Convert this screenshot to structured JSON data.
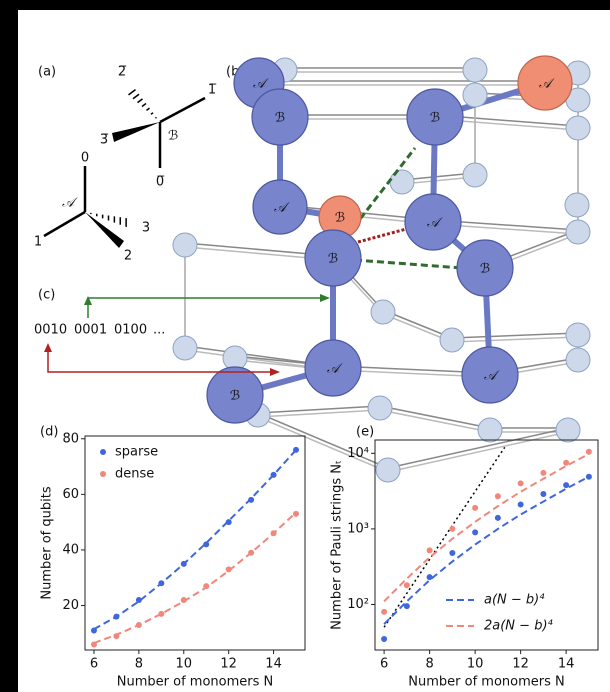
{
  "panel_labels": [
    "(a)",
    "(b)",
    "(c)",
    "(d)",
    "(e)"
  ],
  "fragment_b": {
    "center": "ℬ",
    "legs": [
      "0̅",
      "1̅",
      "2̅",
      "3̅"
    ]
  },
  "fragment_a": {
    "center": "𝒜",
    "legs": [
      "0",
      "1",
      "2",
      "3"
    ]
  },
  "nodes": [
    {
      "label": "𝒜"
    },
    {
      "label": "𝒜"
    },
    {
      "label": "ℬ"
    },
    {
      "label": "ℬ"
    },
    {
      "label": "𝒜"
    },
    {
      "label": "ℬ"
    },
    {
      "label": "𝒜"
    },
    {
      "label": "ℬ"
    },
    {
      "label": "ℬ"
    },
    {
      "label": "𝒜"
    },
    {
      "label": "𝒜"
    },
    {
      "label": "ℬ"
    }
  ],
  "bitstring": [
    "0010",
    "0001",
    "0100",
    "..."
  ],
  "chart_data": [
    {
      "type": "scatter",
      "xlabel": "Number of monomers N",
      "ylabel": "Number of qubits",
      "x": [
        6,
        7,
        8,
        9,
        10,
        11,
        12,
        13,
        14,
        15
      ],
      "series": [
        {
          "name": "sparse",
          "color": "#3f66dc",
          "values": [
            11,
            16,
            22,
            28,
            35,
            42,
            50,
            58,
            67,
            76
          ],
          "fit": [
            11.5,
            16,
            21.5,
            28,
            35,
            42.5,
            50.5,
            58.5,
            67,
            76
          ]
        },
        {
          "name": "dense",
          "color": "#f0877a",
          "values": [
            6,
            9,
            13,
            17,
            22,
            27,
            33,
            39,
            46,
            53
          ],
          "fit": [
            6.5,
            9.5,
            13,
            17,
            21.5,
            26.5,
            32.5,
            39,
            46,
            53.5
          ]
        }
      ],
      "xlim": [
        5.6,
        15.4
      ],
      "xticks": [
        6,
        8,
        10,
        12,
        14
      ],
      "ylim": [
        4,
        81
      ],
      "yticks": [
        20,
        40,
        60,
        80
      ],
      "legend": "upper left"
    },
    {
      "type": "scatter",
      "xlabel": "Number of monomers N",
      "ylabel": "Number of Pauli strings Nₜ",
      "x": [
        6,
        7,
        8,
        9,
        10,
        11,
        12,
        13,
        14,
        15
      ],
      "series": [
        {
          "name": "a(N − b)⁴",
          "color": "#3f66dc",
          "values": [
            35,
            95,
            230,
            480,
            900,
            1400,
            2100,
            2900,
            3800,
            4900
          ],
          "fit": [
            55,
            110,
            210,
            370,
            620,
            1000,
            1550,
            2300,
            3400,
            4900
          ]
        },
        {
          "name": "2a(N − b)⁴",
          "color": "#f0877a",
          "values": [
            80,
            180,
            520,
            1000,
            1900,
            2700,
            4000,
            5500,
            7500,
            10500
          ],
          "fit": [
            110,
            220,
            420,
            740,
            1240,
            2000,
            3100,
            4600,
            6800,
            9800
          ]
        }
      ],
      "reference_line": {
        "x": [
          6,
          11.3
        ],
        "values": [
          50,
          12000
        ],
        "color": "#000000"
      },
      "xlim": [
        5.6,
        15.4
      ],
      "xticks": [
        6,
        8,
        10,
        12,
        14
      ],
      "ylim": [
        25,
        15000
      ],
      "log_y": true,
      "yticks": [
        {
          "value": 100,
          "label": "10²"
        },
        {
          "value": 1000,
          "label": "10³"
        },
        {
          "value": 10000,
          "label": "10⁴"
        }
      ],
      "legend": "lower right"
    }
  ]
}
